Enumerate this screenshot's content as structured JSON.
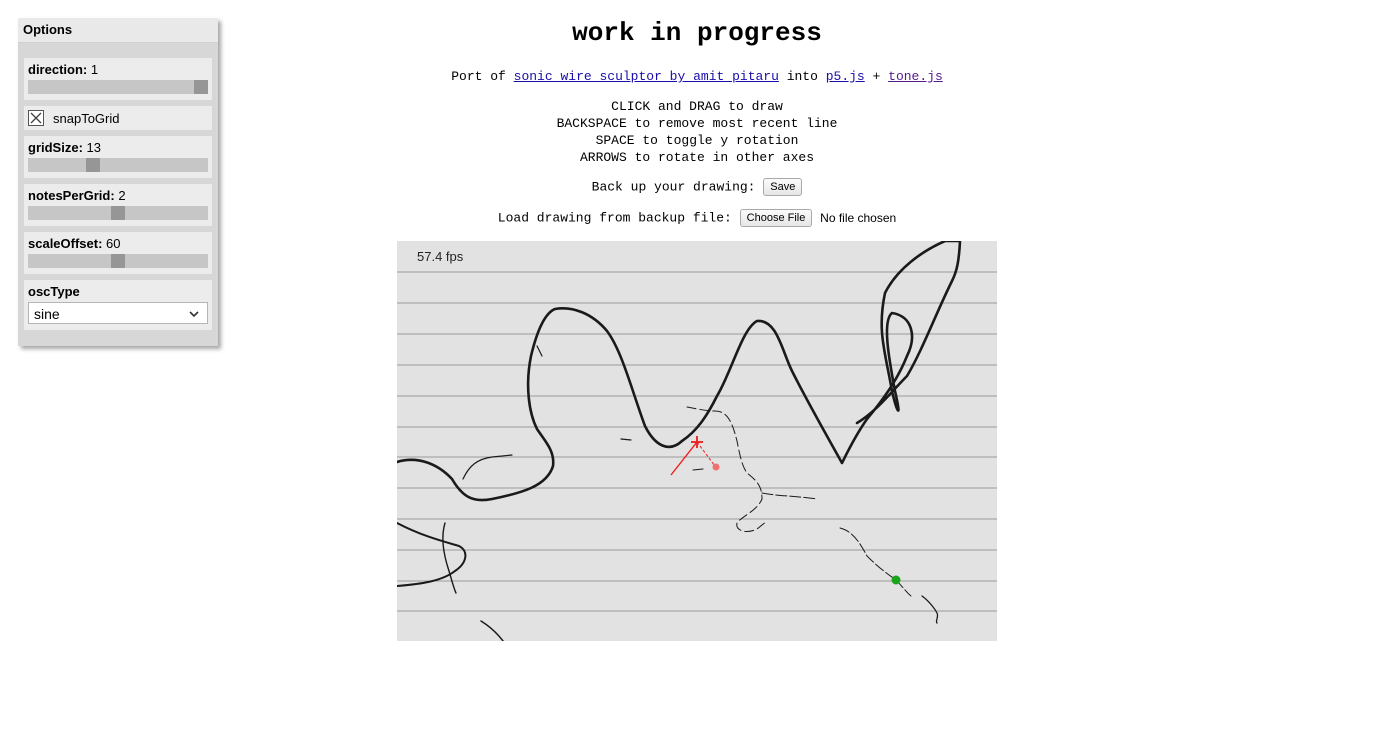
{
  "options": {
    "title": "Options",
    "direction": {
      "label": "direction:",
      "value": "1",
      "fraction": 1.0
    },
    "snapToGrid": {
      "label": "snapToGrid",
      "checked": true
    },
    "gridSize": {
      "label": "gridSize:",
      "value": "13",
      "fraction": 0.35
    },
    "notesPerGrid": {
      "label": "notesPerGrid:",
      "value": "2",
      "fraction": 0.5
    },
    "scaleOffset": {
      "label": "scaleOffset:",
      "value": "60",
      "fraction": 0.5
    },
    "oscType": {
      "label": "oscType",
      "selected": "sine"
    }
  },
  "page": {
    "title": "work in progress",
    "port_prefix": "Port of ",
    "port_link": "sonic wire sculptor by amit pitaru",
    "port_into": " into ",
    "p5_link": "p5.js",
    "plus": " + ",
    "tone_link": "tone.js",
    "instructions": [
      "CLICK and DRAG to draw",
      "BACKSPACE to remove most recent line",
      "SPACE to toggle y rotation",
      "ARROWS to rotate in other axes"
    ],
    "backup_label": "Back up your drawing: ",
    "save_button": "Save",
    "load_label": "Load drawing from backup file: ",
    "choose_file_button": "Choose File",
    "no_file": "No file chosen"
  },
  "canvas": {
    "fps": "57.4 fps"
  },
  "colors": {
    "canvas_bg": "#e2e2e2",
    "grid_line": "#9a9a9a",
    "stroke": "#1a1a1a",
    "cursor": "#ee1c1c",
    "marker_green": "#1aa51a"
  }
}
